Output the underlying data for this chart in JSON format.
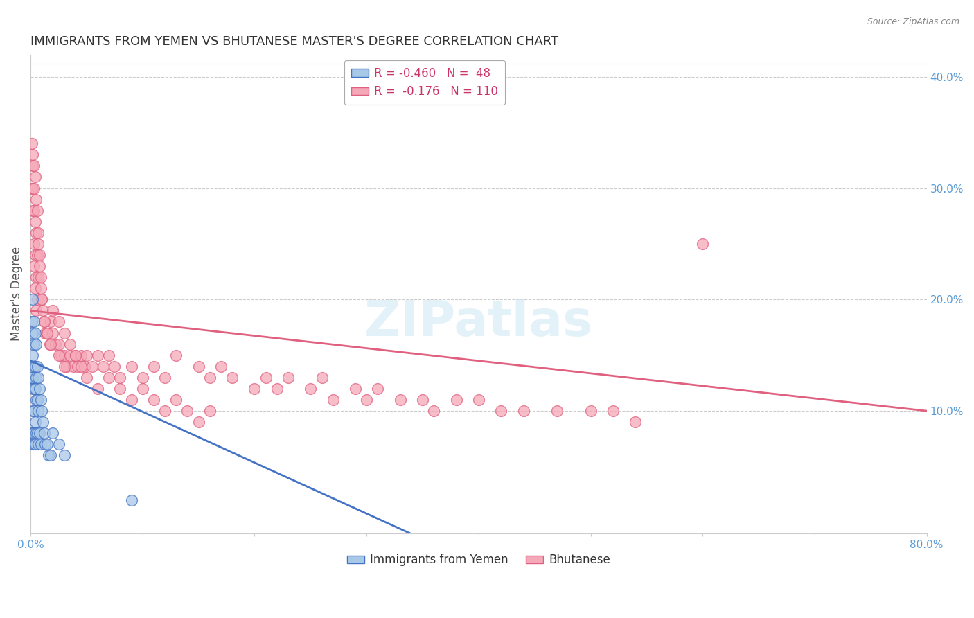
{
  "title": "IMMIGRANTS FROM YEMEN VS BHUTANESE MASTER'S DEGREE CORRELATION CHART",
  "source": "Source: ZipAtlas.com",
  "ylabel": "Master's Degree",
  "xlim": [
    0.0,
    0.8
  ],
  "ylim": [
    -0.01,
    0.42
  ],
  "xticks": [
    0.0,
    0.1,
    0.2,
    0.3,
    0.4,
    0.5,
    0.6,
    0.7,
    0.8
  ],
  "xticklabels": [
    "0.0%",
    "",
    "",
    "",
    "",
    "",
    "",
    "",
    "80.0%"
  ],
  "yticks_right": [
    0.1,
    0.2,
    0.3,
    0.4
  ],
  "ytick_right_labels": [
    "10.0%",
    "20.0%",
    "30.0%",
    "40.0%"
  ],
  "color_yemen": "#a8c8e8",
  "color_bhutanese": "#f5a8b8",
  "color_line_yemen": "#4472c4",
  "color_line_bhutanese": "#e06080",
  "color_axis_right": "#5b9bd5",
  "background_color": "#ffffff",
  "watermark_text": "ZIPatlas",
  "yemen_line_x0": 0.0,
  "yemen_line_y0": 0.145,
  "yemen_line_x1": 0.35,
  "yemen_line_y1": -0.015,
  "bhutan_line_x0": 0.0,
  "bhutan_line_y0": 0.19,
  "bhutan_line_x1": 0.8,
  "bhutan_line_y1": 0.1,
  "yemen_x": [
    0.001,
    0.001,
    0.001,
    0.002,
    0.002,
    0.002,
    0.002,
    0.002,
    0.002,
    0.002,
    0.002,
    0.003,
    0.003,
    0.003,
    0.003,
    0.003,
    0.003,
    0.003,
    0.004,
    0.004,
    0.004,
    0.004,
    0.004,
    0.005,
    0.005,
    0.005,
    0.005,
    0.006,
    0.006,
    0.006,
    0.007,
    0.007,
    0.007,
    0.008,
    0.008,
    0.009,
    0.009,
    0.01,
    0.011,
    0.012,
    0.013,
    0.015,
    0.016,
    0.018,
    0.02,
    0.025,
    0.03,
    0.09
  ],
  "yemen_y": [
    0.18,
    0.13,
    0.08,
    0.2,
    0.17,
    0.15,
    0.13,
    0.12,
    0.1,
    0.08,
    0.07,
    0.18,
    0.16,
    0.14,
    0.12,
    0.1,
    0.08,
    0.07,
    0.17,
    0.14,
    0.12,
    0.09,
    0.07,
    0.16,
    0.13,
    0.11,
    0.08,
    0.14,
    0.11,
    0.08,
    0.13,
    0.1,
    0.07,
    0.12,
    0.08,
    0.11,
    0.07,
    0.1,
    0.09,
    0.08,
    0.07,
    0.07,
    0.06,
    0.06,
    0.08,
    0.07,
    0.06,
    0.02
  ],
  "bhutan_x": [
    0.001,
    0.001,
    0.002,
    0.002,
    0.002,
    0.002,
    0.003,
    0.003,
    0.003,
    0.003,
    0.003,
    0.004,
    0.004,
    0.004,
    0.004,
    0.005,
    0.005,
    0.005,
    0.005,
    0.006,
    0.006,
    0.006,
    0.007,
    0.007,
    0.008,
    0.009,
    0.01,
    0.011,
    0.012,
    0.013,
    0.015,
    0.017,
    0.018,
    0.02,
    0.022,
    0.025,
    0.027,
    0.03,
    0.032,
    0.035,
    0.038,
    0.04,
    0.042,
    0.045,
    0.048,
    0.05,
    0.055,
    0.06,
    0.065,
    0.07,
    0.075,
    0.08,
    0.09,
    0.1,
    0.11,
    0.12,
    0.13,
    0.15,
    0.16,
    0.17,
    0.18,
    0.2,
    0.21,
    0.22,
    0.23,
    0.25,
    0.26,
    0.27,
    0.29,
    0.3,
    0.31,
    0.33,
    0.35,
    0.36,
    0.38,
    0.4,
    0.42,
    0.44,
    0.47,
    0.5,
    0.52,
    0.54,
    0.02,
    0.025,
    0.03,
    0.035,
    0.04,
    0.045,
    0.05,
    0.06,
    0.07,
    0.08,
    0.09,
    0.1,
    0.11,
    0.12,
    0.13,
    0.14,
    0.15,
    0.16,
    0.007,
    0.008,
    0.009,
    0.01,
    0.012,
    0.015,
    0.018,
    0.025,
    0.03,
    0.6
  ],
  "bhutan_y": [
    0.34,
    0.3,
    0.33,
    0.32,
    0.3,
    0.28,
    0.32,
    0.3,
    0.28,
    0.25,
    0.23,
    0.31,
    0.27,
    0.24,
    0.21,
    0.29,
    0.26,
    0.22,
    0.19,
    0.28,
    0.24,
    0.2,
    0.26,
    0.22,
    0.24,
    0.22,
    0.2,
    0.19,
    0.18,
    0.17,
    0.17,
    0.16,
    0.18,
    0.17,
    0.16,
    0.16,
    0.15,
    0.15,
    0.14,
    0.15,
    0.14,
    0.15,
    0.14,
    0.15,
    0.14,
    0.15,
    0.14,
    0.15,
    0.14,
    0.15,
    0.14,
    0.13,
    0.14,
    0.13,
    0.14,
    0.13,
    0.15,
    0.14,
    0.13,
    0.14,
    0.13,
    0.12,
    0.13,
    0.12,
    0.13,
    0.12,
    0.13,
    0.11,
    0.12,
    0.11,
    0.12,
    0.11,
    0.11,
    0.1,
    0.11,
    0.11,
    0.1,
    0.1,
    0.1,
    0.1,
    0.1,
    0.09,
    0.19,
    0.18,
    0.17,
    0.16,
    0.15,
    0.14,
    0.13,
    0.12,
    0.13,
    0.12,
    0.11,
    0.12,
    0.11,
    0.1,
    0.11,
    0.1,
    0.09,
    0.1,
    0.25,
    0.23,
    0.21,
    0.2,
    0.18,
    0.17,
    0.16,
    0.15,
    0.14,
    0.25
  ]
}
